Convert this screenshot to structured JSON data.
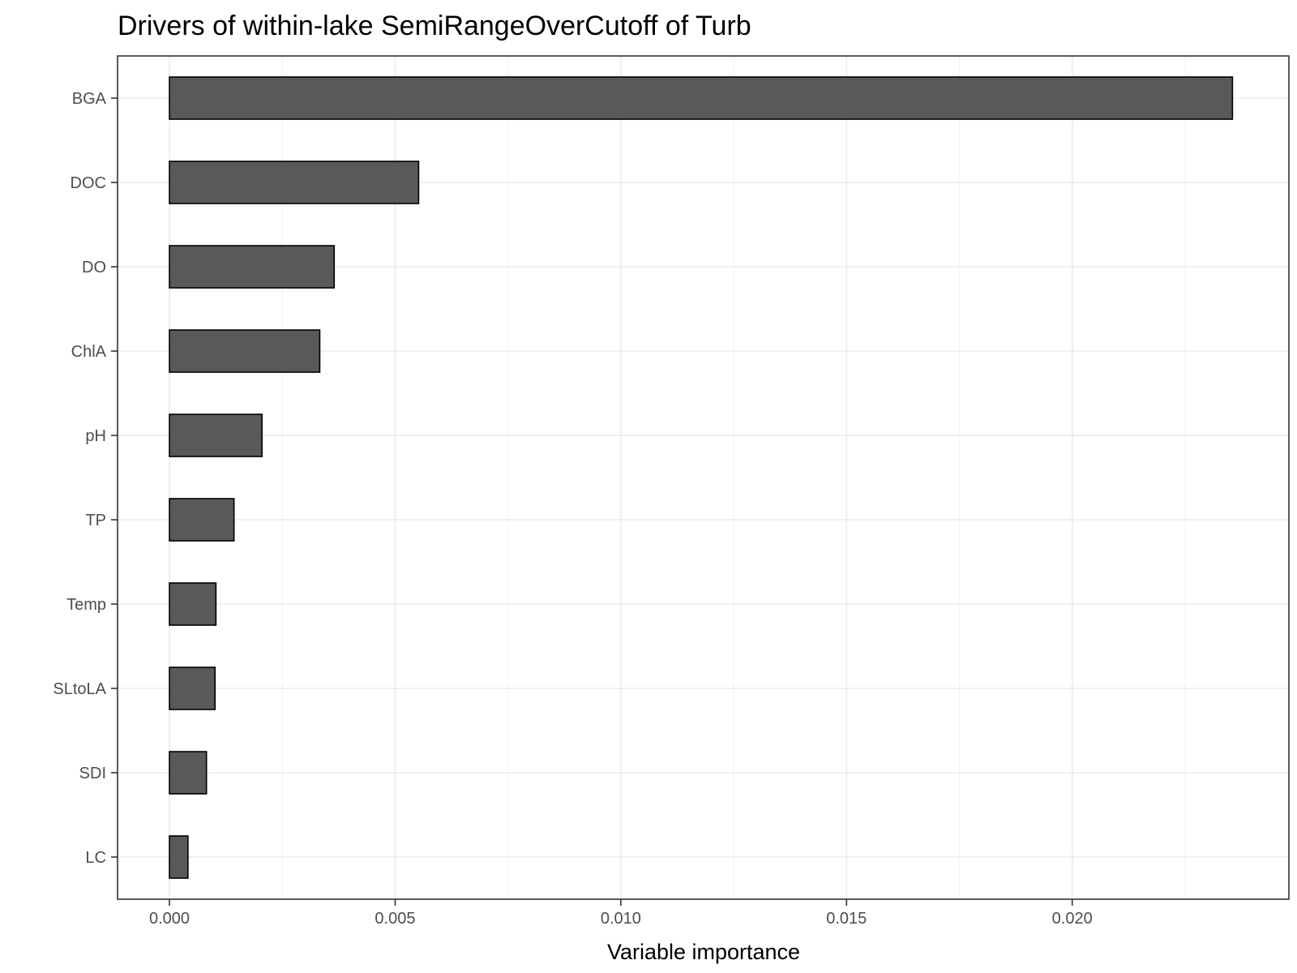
{
  "chart_data": {
    "type": "bar",
    "orientation": "horizontal",
    "title": "Drivers of within-lake SemiRangeOverCutoff of Turb",
    "xlabel": "Variable importance",
    "ylabel": "",
    "categories": [
      "BGA",
      "DOC",
      "DO",
      "ChlA",
      "pH",
      "TP",
      "Temp",
      "SLtoLA",
      "SDI",
      "LC"
    ],
    "values": [
      0.02355,
      0.00552,
      0.00365,
      0.00333,
      0.00205,
      0.00143,
      0.00103,
      0.00101,
      0.00082,
      0.00041
    ],
    "xlim": [
      -0.00115,
      0.0248
    ],
    "x_ticks": [
      0.0,
      0.005,
      0.01,
      0.015,
      0.02
    ],
    "x_tick_labels": [
      "0.000",
      "0.005",
      "0.010",
      "0.015",
      "0.020"
    ],
    "grid": true,
    "legend": "none",
    "colors": {
      "bar_fill": "#595959",
      "bar_stroke": "#000000",
      "grid_major": "#ebebeb",
      "grid_minor": "#f3f3f3",
      "panel_border": "#333333",
      "tick_text": "#4d4d4d"
    }
  }
}
